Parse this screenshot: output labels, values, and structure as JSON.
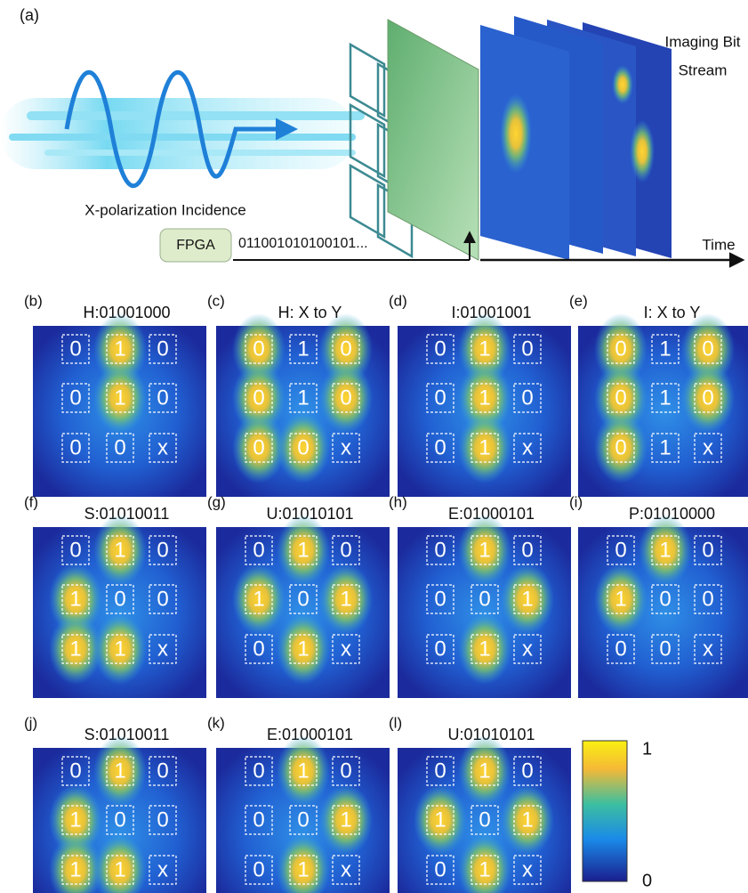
{
  "figure": {
    "a": {
      "label": "(a)",
      "incidence": "X-polarization Incidence",
      "fpga": "FPGA",
      "bits": "011001010100101...",
      "stream": [
        "Imaging Bit",
        "Stream"
      ],
      "time": "Time"
    },
    "panels": [
      {
        "label": "(b)",
        "title": "H:01001000",
        "cells": [
          "0",
          "1",
          "0",
          "0",
          "1",
          "0",
          "0",
          "0",
          "x"
        ]
      },
      {
        "label": "(c)",
        "title": "H: X to Y",
        "cells": [
          "0",
          "1",
          "0",
          "0",
          "1",
          "0",
          "0",
          "0",
          "x"
        ]
      },
      {
        "label": "(d)",
        "title": "I:01001001",
        "cells": [
          "0",
          "1",
          "0",
          "0",
          "1",
          "0",
          "0",
          "1",
          "x"
        ]
      },
      {
        "label": "(e)",
        "title": "I: X to Y",
        "cells": [
          "0",
          "1",
          "0",
          "0",
          "1",
          "0",
          "0",
          "1",
          "x"
        ]
      },
      {
        "label": "(f)",
        "title": "S:01010011",
        "cells": [
          "0",
          "1",
          "0",
          "1",
          "0",
          "0",
          "1",
          "1",
          "x"
        ]
      },
      {
        "label": "(g)",
        "title": "U:01010101",
        "cells": [
          "0",
          "1",
          "0",
          "1",
          "0",
          "1",
          "0",
          "1",
          "x"
        ]
      },
      {
        "label": "(h)",
        "title": "E:01000101",
        "cells": [
          "0",
          "1",
          "0",
          "0",
          "0",
          "1",
          "0",
          "1",
          "x"
        ]
      },
      {
        "label": "(i)",
        "title": "P:01010000",
        "cells": [
          "0",
          "1",
          "0",
          "1",
          "0",
          "0",
          "0",
          "0",
          "x"
        ]
      },
      {
        "label": "(j)",
        "title": "S:01010011",
        "cells": [
          "0",
          "1",
          "0",
          "1",
          "0",
          "0",
          "1",
          "1",
          "x"
        ]
      },
      {
        "label": "(k)",
        "title": "E:01000101",
        "cells": [
          "0",
          "1",
          "0",
          "0",
          "0",
          "1",
          "0",
          "1",
          "x"
        ]
      },
      {
        "label": "(l)",
        "title": "U:01010101",
        "cells": [
          "0",
          "1",
          "0",
          "1",
          "0",
          "1",
          "0",
          "1",
          "x"
        ]
      }
    ],
    "colorbar": {
      "max": 1,
      "min": 0
    }
  }
}
